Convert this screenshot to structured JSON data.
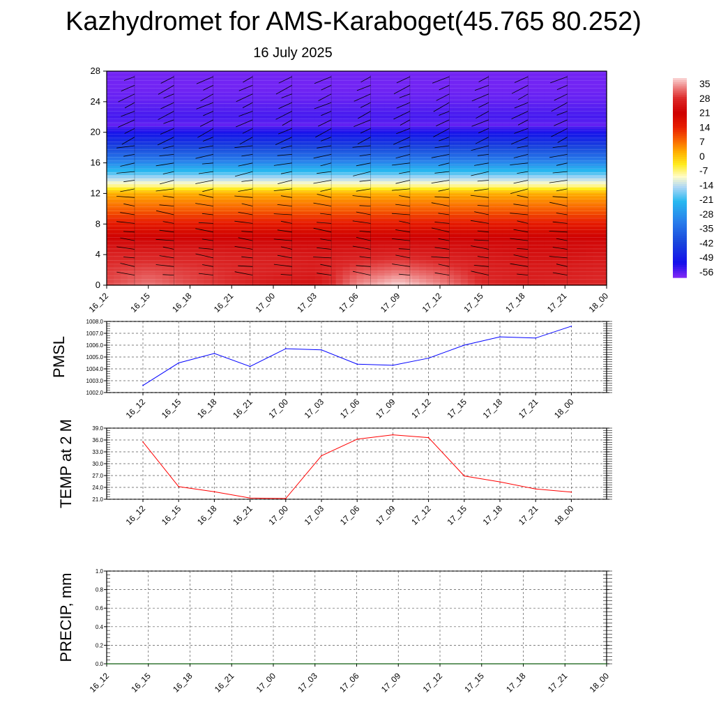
{
  "header": {
    "title": "Kazhydromet for AMS-Karaboget(45.765 80.252)",
    "date": "16 July 2025"
  },
  "chart_data": [
    {
      "type": "heatmap",
      "name": "temperature-height-section",
      "x_ticks": [
        "16_12",
        "16_15",
        "16_18",
        "16_21",
        "17_00",
        "17_03",
        "17_06",
        "17_09",
        "17_12",
        "17_15",
        "17_18",
        "17_21",
        "18_00"
      ],
      "y_ticks": [
        0,
        4,
        8,
        12,
        16,
        20,
        24,
        28
      ],
      "ylim": [
        0,
        28
      ],
      "colorbar": {
        "labels": [
          "35",
          "28",
          "21",
          "14",
          "7",
          "0",
          "-7",
          "-14",
          "-21",
          "-28",
          "-35",
          "-42",
          "-49",
          "-56"
        ],
        "range": [
          -59,
          38
        ]
      },
      "levels": [
        0,
        2,
        4,
        6,
        8,
        10,
        12,
        13,
        14,
        16,
        18,
        20,
        21,
        22,
        24,
        26,
        28
      ],
      "temperature_grid": [
        [
          30,
          33,
          30,
          28,
          25,
          24,
          34,
          38,
          34,
          28,
          26,
          27,
          28
        ],
        [
          29,
          30,
          29,
          28,
          27,
          26,
          30,
          32,
          30,
          27,
          26,
          26,
          27
        ],
        [
          27,
          27,
          27,
          26,
          26,
          25,
          26,
          27,
          26,
          25,
          24,
          24,
          25
        ],
        [
          22,
          22,
          22,
          22,
          22,
          22,
          22,
          22,
          22,
          22,
          22,
          22,
          22
        ],
        [
          15,
          15,
          15,
          15,
          15,
          15,
          15,
          15,
          15,
          15,
          15,
          15,
          15
        ],
        [
          8,
          8,
          8,
          8,
          8,
          8,
          8,
          8,
          8,
          8,
          8,
          8,
          8
        ],
        [
          2,
          2,
          2,
          2,
          2,
          2,
          2,
          2,
          2,
          2,
          2,
          2,
          2
        ],
        [
          -8,
          -8,
          -8,
          -8,
          -8,
          -8,
          -8,
          -8,
          -8,
          -8,
          -8,
          -8,
          -8
        ],
        [
          -15,
          -15,
          -15,
          -15,
          -15,
          -15,
          -15,
          -15,
          -15,
          -15,
          -15,
          -15,
          -15
        ],
        [
          -30,
          -30,
          -30,
          -30,
          -30,
          -30,
          -30,
          -30,
          -30,
          -30,
          -30,
          -30,
          -30
        ],
        [
          -42,
          -42,
          -42,
          -42,
          -42,
          -42,
          -42,
          -42,
          -42,
          -42,
          -42,
          -42,
          -42
        ],
        [
          -52,
          -52,
          -52,
          -52,
          -52,
          -52,
          -52,
          -52,
          -52,
          -52,
          -52,
          -52,
          -52
        ],
        [
          -57,
          -57,
          -57,
          -57,
          -57,
          -57,
          -57,
          -57,
          -57,
          -57,
          -57,
          -57,
          -57
        ],
        [
          -55,
          -55,
          -55,
          -55,
          -55,
          -55,
          -55,
          -55,
          -55,
          -55,
          -55,
          -55,
          -55
        ],
        [
          -57,
          -57,
          -57,
          -57,
          -57,
          -57,
          -57,
          -57,
          -57,
          -57,
          -57,
          -57,
          -57
        ],
        [
          -58,
          -58,
          -58,
          -58,
          -58,
          -58,
          -58,
          -58,
          -58,
          -58,
          -58,
          -58,
          -58
        ],
        [
          -58,
          -58,
          -58,
          -58,
          -58,
          -58,
          -58,
          -58,
          -58,
          -58,
          -58,
          -58,
          -58
        ]
      ]
    },
    {
      "type": "line",
      "name": "pmsl",
      "ylabel": "PMSL",
      "x_ticks": [
        "16_12",
        "16_15",
        "16_18",
        "16_21",
        "17_00",
        "17_03",
        "17_06",
        "17_09",
        "17_12",
        "17_15",
        "17_18",
        "17_21",
        "18_00"
      ],
      "values": [
        1002.6,
        1004.5,
        1005.3,
        1004.2,
        1005.7,
        1005.6,
        1004.4,
        1004.3,
        1004.9,
        1006.0,
        1006.7,
        1006.6,
        1007.6
      ],
      "ylim": [
        1002.0,
        1008.0
      ],
      "y_ticks": [
        "1002.0",
        "1003.0",
        "1004.0",
        "1005.0",
        "1006.0",
        "1007.0",
        "1008.0"
      ],
      "color": "#0000ff"
    },
    {
      "type": "line",
      "name": "temp-2m",
      "ylabel": "TEMP at 2 M",
      "x_ticks": [
        "16_12",
        "16_15",
        "16_18",
        "16_21",
        "17_00",
        "17_03",
        "17_06",
        "17_09",
        "17_12",
        "17_15",
        "17_18",
        "17_21",
        "18_00"
      ],
      "values": [
        35.5,
        24.2,
        22.9,
        21.3,
        21.2,
        32.0,
        36.2,
        37.3,
        36.6,
        26.9,
        25.4,
        23.6,
        22.8
      ],
      "ylim": [
        21.0,
        39.0
      ],
      "y_ticks": [
        "21.0",
        "24.0",
        "27.0",
        "30.0",
        "33.0",
        "36.0",
        "39.0"
      ],
      "color": "#ff0000"
    },
    {
      "type": "line",
      "name": "precip",
      "ylabel": "PRECIP, mm",
      "x_ticks": [
        "16_12",
        "16_15",
        "16_18",
        "16_21",
        "17_00",
        "17_03",
        "17_06",
        "17_09",
        "17_12",
        "17_15",
        "17_18",
        "17_21",
        "18_00"
      ],
      "values": [
        0,
        0,
        0,
        0,
        0,
        0,
        0,
        0,
        0,
        0,
        0,
        0,
        0
      ],
      "ylim": [
        0.0,
        1.0
      ],
      "y_ticks": [
        "0.0",
        "0.2",
        "0.4",
        "0.6",
        "0.8",
        "1.0"
      ],
      "color": "#006400"
    }
  ]
}
